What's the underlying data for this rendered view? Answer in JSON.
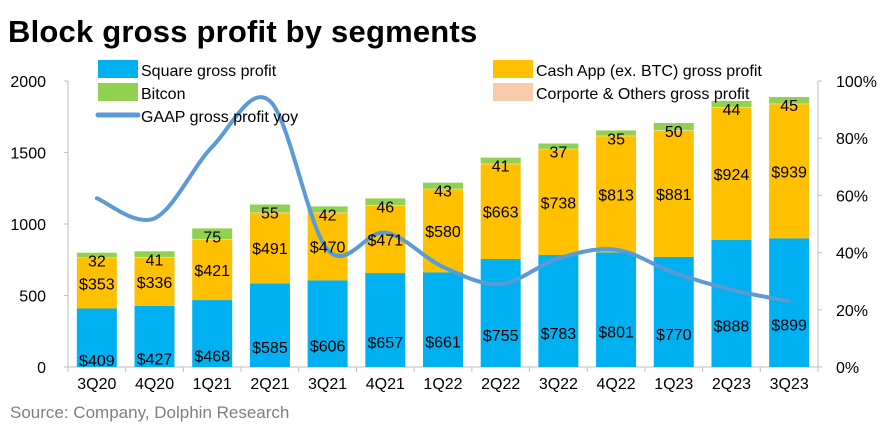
{
  "chart_data": {
    "type": "bar",
    "title": "Block gross profit by segments",
    "source": "Source: Company, Dolphin Research",
    "categories": [
      "3Q20",
      "4Q20",
      "1Q21",
      "2Q21",
      "3Q21",
      "4Q21",
      "1Q22",
      "2Q22",
      "3Q22",
      "4Q22",
      "1Q23",
      "2Q23",
      "3Q23"
    ],
    "series": [
      {
        "name": "Square gross profit",
        "color": "#00B0F0",
        "values": [
          409,
          427,
          468,
          585,
          606,
          657,
          661,
          755,
          783,
          801,
          770,
          888,
          899
        ],
        "labels": [
          "$409",
          "$427",
          "$468",
          "$585",
          "$606",
          "$657",
          "$661",
          "$755",
          "$783",
          "$801",
          "$770",
          "$888",
          "$899"
        ]
      },
      {
        "name": "Cash App (ex. BTC)  gross profit",
        "color": "#FFC000",
        "values": [
          353,
          336,
          421,
          491,
          470,
          471,
          580,
          663,
          738,
          813,
          881,
          924,
          939
        ],
        "labels": [
          "$353",
          "$336",
          "$421",
          "$491",
          "$470",
          "$471",
          "$580",
          "$663",
          "$738",
          "$813",
          "$881",
          "$924",
          "$939"
        ]
      },
      {
        "name": "Bitcon",
        "color": "#92D050",
        "values": [
          32,
          41,
          75,
          55,
          42,
          46,
          43,
          41,
          37,
          35,
          50,
          44,
          45
        ],
        "labels": [
          "32",
          "41",
          "75",
          "55",
          "42",
          "46",
          "43",
          "41",
          "37",
          "35",
          "50",
          "44",
          "45"
        ]
      },
      {
        "name": "Corporte & Others gross profit",
        "color": "#F8CBAD",
        "values": [
          5,
          5,
          5,
          5,
          5,
          5,
          5,
          5,
          5,
          5,
          5,
          5,
          5
        ]
      },
      {
        "name": "GAAP gross profit yoy",
        "type": "line",
        "axis": "right",
        "color": "#5B9BD5",
        "values": [
          0.59,
          0.52,
          0.77,
          0.93,
          0.41,
          0.47,
          0.35,
          0.29,
          0.38,
          0.41,
          0.33,
          0.27,
          0.23
        ]
      }
    ],
    "y_left": {
      "range": [
        0,
        2000
      ],
      "ticks": [
        "0",
        "500",
        "1000",
        "1500",
        "2000"
      ]
    },
    "y_right": {
      "range": [
        0,
        1
      ],
      "ticks": [
        "0%",
        "20%",
        "40%",
        "60%",
        "80%",
        "100%"
      ]
    },
    "legend": "top",
    "grid": false
  }
}
